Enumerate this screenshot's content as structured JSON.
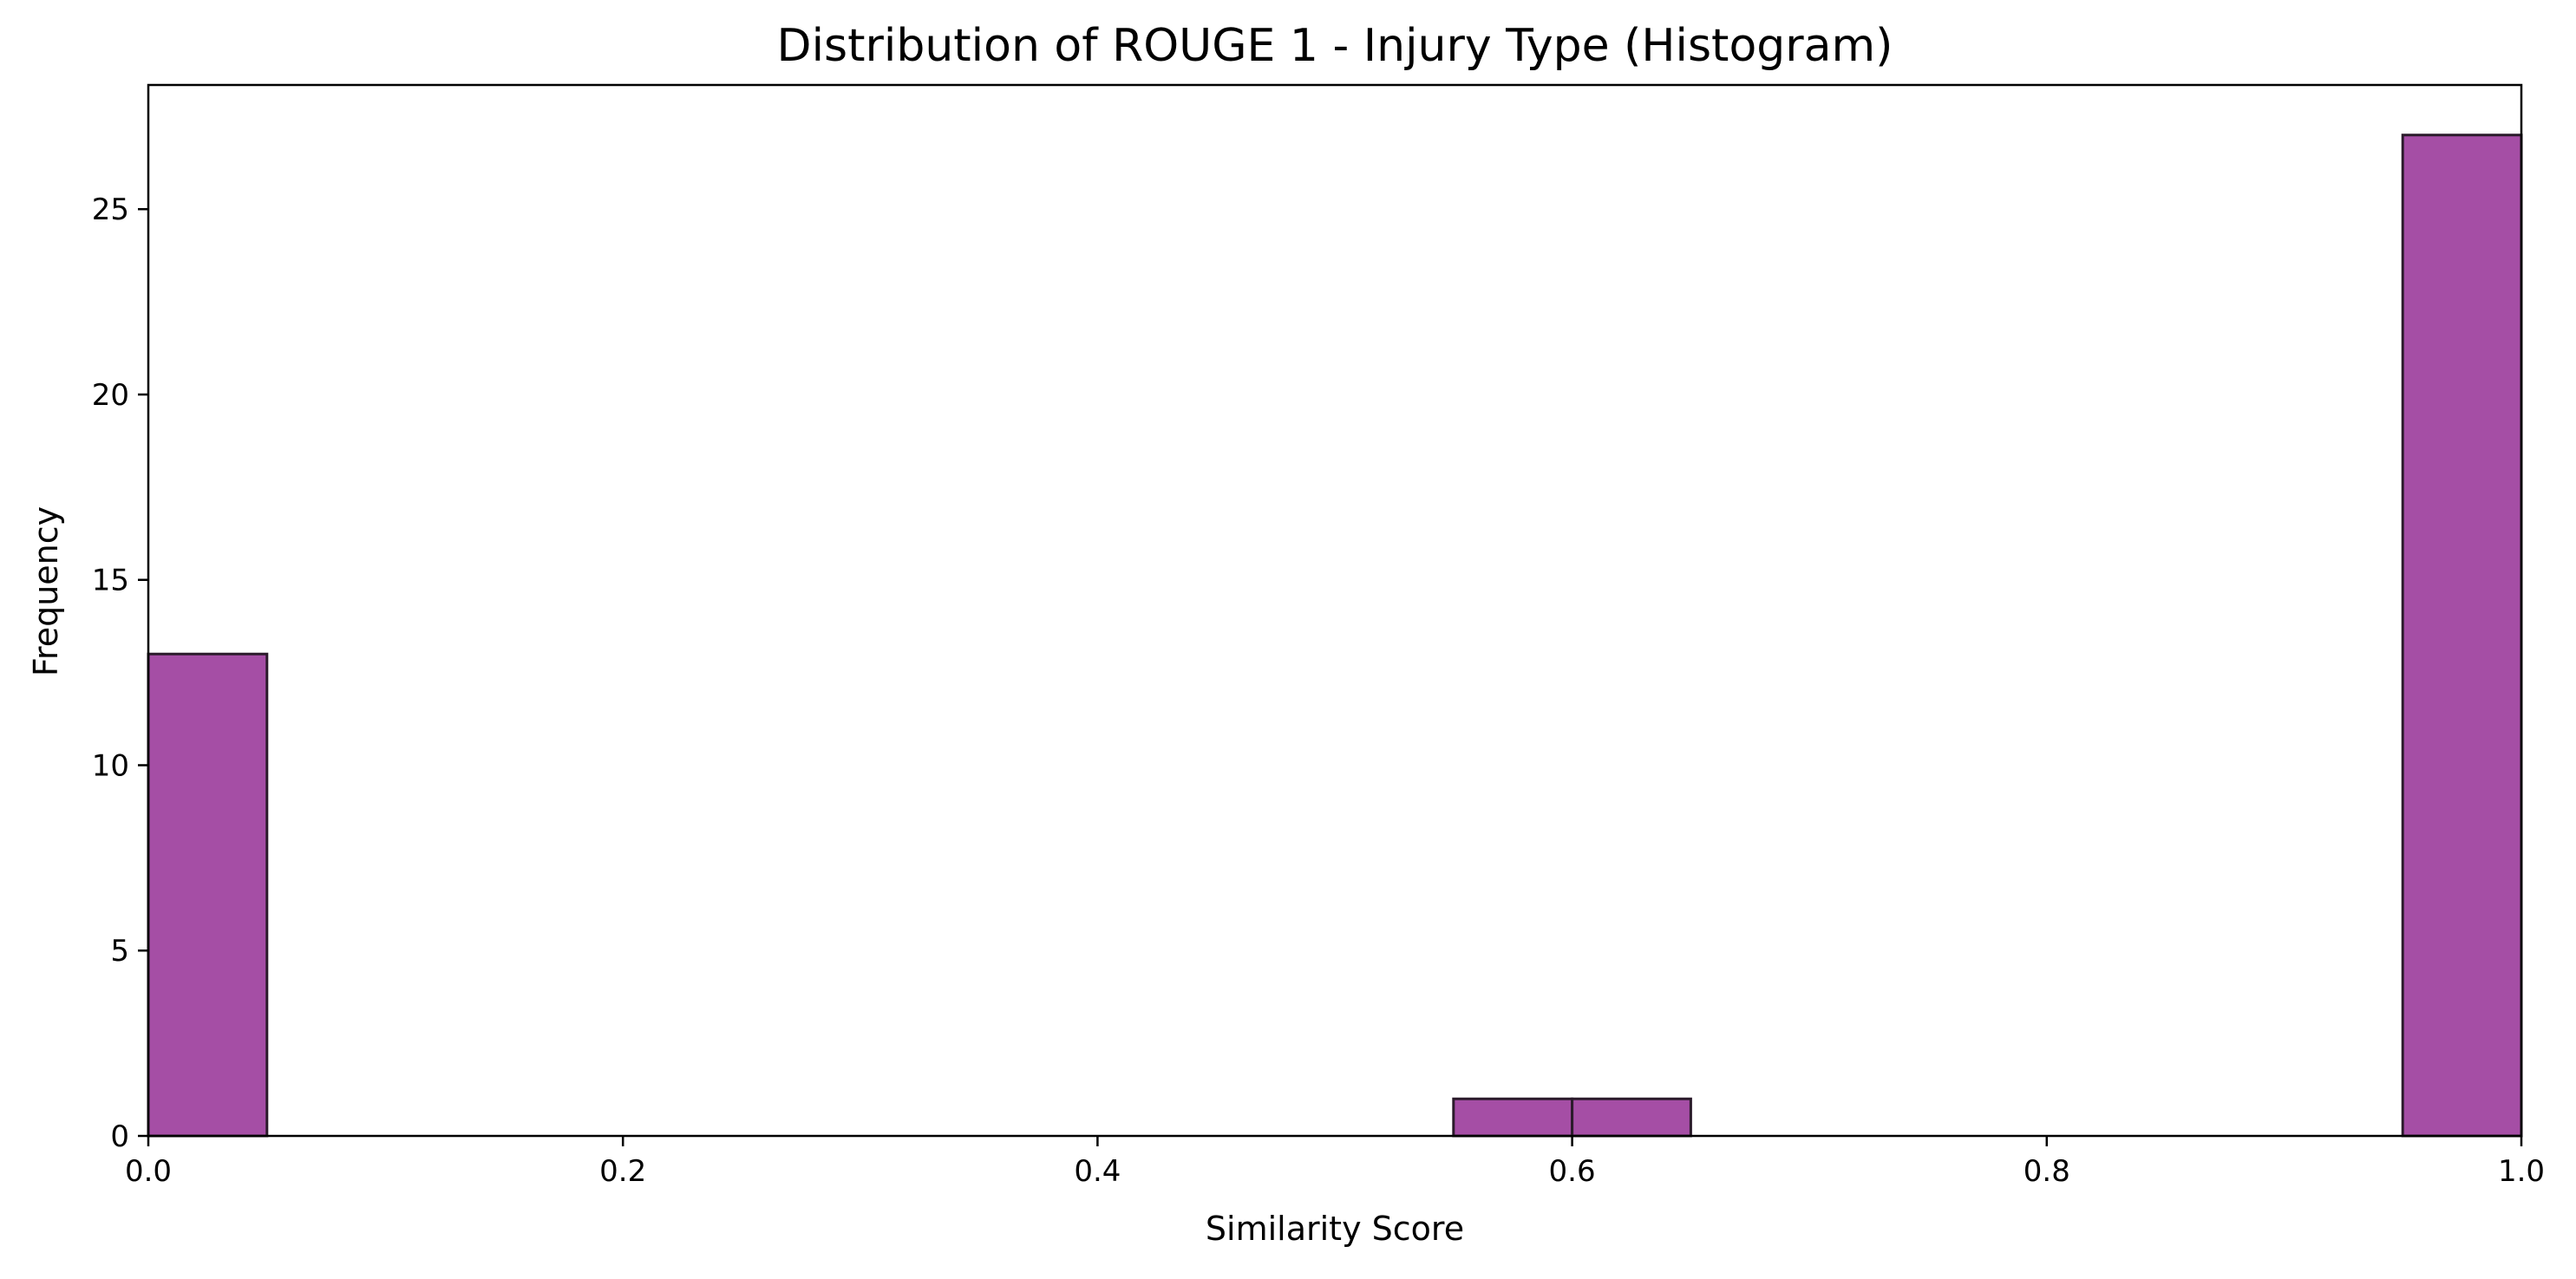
{
  "chart_data": {
    "type": "bar",
    "title": "Distribution of ROUGE 1 - Injury Type (Histogram)",
    "xlabel": "Similarity Score",
    "ylabel": "Frequency",
    "xlim": [
      0.0,
      1.0
    ],
    "ylim": [
      0,
      28.35
    ],
    "x_ticks": [
      0.0,
      0.2,
      0.4,
      0.6,
      0.8,
      1.0
    ],
    "x_tick_labels": [
      "0.0",
      "0.2",
      "0.4",
      "0.6",
      "0.8",
      "1.0"
    ],
    "y_ticks": [
      0,
      5,
      10,
      15,
      20,
      25
    ],
    "y_tick_labels": [
      "0",
      "5",
      "10",
      "15",
      "20",
      "25"
    ],
    "bins": [
      {
        "x0": 0.0,
        "x1": 0.05,
        "count": 13
      },
      {
        "x0": 0.55,
        "x1": 0.6,
        "count": 1
      },
      {
        "x0": 0.6,
        "x1": 0.65,
        "count": 1
      },
      {
        "x0": 0.95,
        "x1": 1.0,
        "count": 27
      }
    ],
    "bar_color": "#9b3b9b",
    "edge_color": "#2b1b2b",
    "grid": false,
    "legend": "none"
  }
}
